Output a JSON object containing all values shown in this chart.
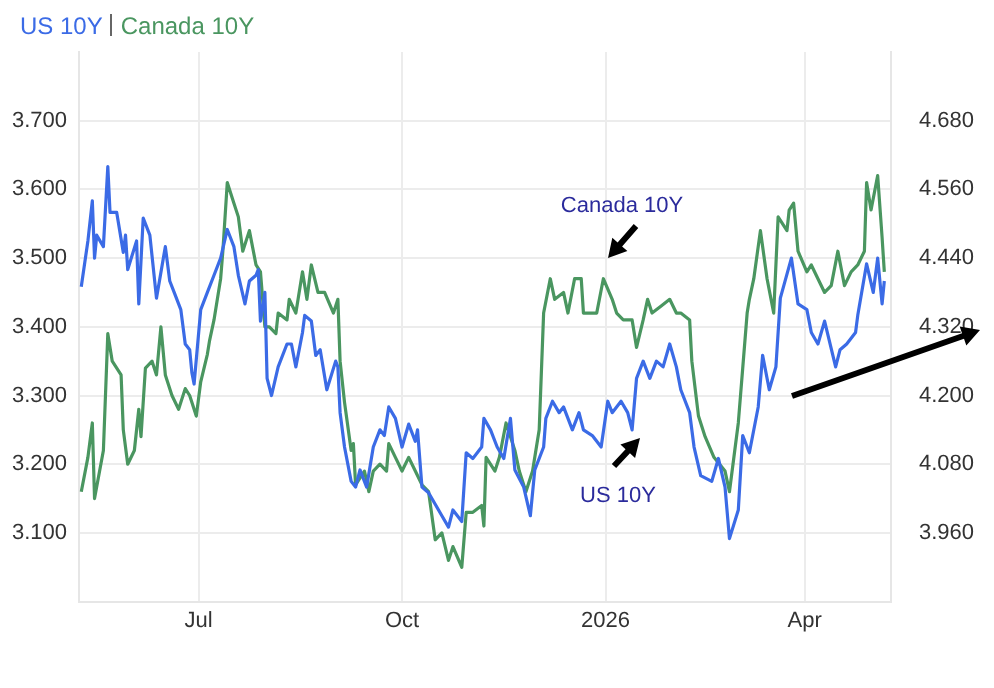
{
  "chart_data": {
    "type": "line",
    "xlim": [
      "2025-05-08",
      "2026-05-10"
    ],
    "xticks": [
      {
        "value": "2025-07-01",
        "label": "Jul"
      },
      {
        "value": "2025-10-01",
        "label": "Oct"
      },
      {
        "value": "2026-01-01",
        "label": "2026"
      },
      {
        "value": "2026-04-01",
        "label": "Apr"
      }
    ],
    "ylim": [
      3.0,
      3.8
    ],
    "yticks": [
      {
        "value": 3.1,
        "label": "3.100"
      },
      {
        "value": 3.2,
        "label": "3.200"
      },
      {
        "value": 3.3,
        "label": "3.300"
      },
      {
        "value": 3.4,
        "label": "3.400"
      },
      {
        "value": 3.5,
        "label": "3.500"
      },
      {
        "value": 3.6,
        "label": "3.600"
      },
      {
        "value": 3.7,
        "label": "3.700"
      }
    ],
    "y2lim": [
      3.84,
      4.8
    ],
    "y2ticks": [
      {
        "value": 3.96,
        "label": "3.960"
      },
      {
        "value": 4.08,
        "label": "4.080"
      },
      {
        "value": 4.2,
        "label": "4.200"
      },
      {
        "value": 4.32,
        "label": "4.320"
      },
      {
        "value": 4.44,
        "label": "4.440"
      },
      {
        "value": 4.56,
        "label": "4.560"
      },
      {
        "value": 4.68,
        "label": "4.680"
      }
    ],
    "grid": true,
    "legend": "top left",
    "marker": "none",
    "line_style": "solid",
    "annotations": [
      "Canada 10Y",
      "US 10Y"
    ],
    "series": [
      {
        "name": "US 10Y",
        "color": "#3b6be6",
        "axis": "y2",
        "x": [
          "2025-05-09",
          "2025-05-12",
          "2025-05-14",
          "2025-05-15",
          "2025-05-16",
          "2025-05-19",
          "2025-05-21",
          "2025-05-22",
          "2025-05-25",
          "2025-05-28",
          "2025-05-29",
          "2025-05-30",
          "2025-06-03",
          "2025-06-04",
          "2025-06-06",
          "2025-06-09",
          "2025-06-12",
          "2025-06-16",
          "2025-06-18",
          "2025-06-20",
          "2025-06-23",
          "2025-06-25",
          "2025-06-27",
          "2025-06-28",
          "2025-06-29",
          "2025-07-02",
          "2025-07-05",
          "2025-07-08",
          "2025-07-11",
          "2025-07-14",
          "2025-07-17",
          "2025-07-19",
          "2025-07-22",
          "2025-07-24",
          "2025-07-27",
          "2025-07-28",
          "2025-07-29",
          "2025-07-31",
          "2025-08-01",
          "2025-08-03",
          "2025-08-06",
          "2025-08-10",
          "2025-08-12",
          "2025-08-14",
          "2025-08-17",
          "2025-08-18",
          "2025-08-21",
          "2025-08-23",
          "2025-08-25",
          "2025-08-28",
          "2025-09-01",
          "2025-09-02",
          "2025-09-03",
          "2025-09-05",
          "2025-09-08",
          "2025-09-10",
          "2025-09-12",
          "2025-09-15",
          "2025-09-18",
          "2025-09-21",
          "2025-09-23",
          "2025-09-25",
          "2025-09-28",
          "2025-10-01",
          "2025-10-04",
          "2025-10-07",
          "2025-10-08",
          "2025-10-10",
          "2025-10-13",
          "2025-10-16",
          "2025-10-19",
          "2025-10-22",
          "2025-10-24",
          "2025-10-28",
          "2025-10-30",
          "2025-11-02",
          "2025-11-06",
          "2025-11-07",
          "2025-11-10",
          "2025-11-13",
          "2025-11-16",
          "2025-11-19",
          "2025-11-21",
          "2025-11-25",
          "2025-11-28",
          "2025-11-30",
          "2025-12-04",
          "2025-12-05",
          "2025-12-08",
          "2025-12-11",
          "2025-12-13",
          "2025-12-17",
          "2025-12-20",
          "2025-12-22",
          "2025-12-26",
          "2025-12-30",
          "2026-01-02",
          "2026-01-04",
          "2026-01-08",
          "2026-01-11",
          "2026-01-13",
          "2026-01-15",
          "2026-01-18",
          "2026-01-21",
          "2026-01-24",
          "2026-01-27",
          "2026-01-30",
          "2026-02-02",
          "2026-02-04",
          "2026-02-08",
          "2026-02-10",
          "2026-02-13",
          "2026-02-18",
          "2026-02-21",
          "2026-02-24",
          "2026-02-26",
          "2026-03-02",
          "2026-03-04",
          "2026-03-07",
          "2026-03-11",
          "2026-03-13",
          "2026-03-16",
          "2026-03-19",
          "2026-03-21",
          "2026-03-26",
          "2026-03-29",
          "2026-04-02",
          "2026-04-04",
          "2026-04-07",
          "2026-04-10",
          "2026-04-15",
          "2026-04-17",
          "2026-04-20",
          "2026-04-24",
          "2026-04-25",
          "2026-04-29",
          "2026-05-02",
          "2026-05-04",
          "2026-05-06",
          "2026-05-07"
        ],
        "values": [
          4.39,
          4.47,
          4.54,
          4.44,
          4.48,
          4.46,
          4.6,
          4.52,
          4.52,
          4.45,
          4.48,
          4.42,
          4.47,
          4.36,
          4.51,
          4.48,
          4.37,
          4.46,
          4.4,
          4.38,
          4.35,
          4.29,
          4.28,
          4.24,
          4.22,
          4.35,
          4.38,
          4.41,
          4.44,
          4.49,
          4.46,
          4.41,
          4.36,
          4.4,
          4.41,
          4.42,
          4.33,
          4.38,
          4.23,
          4.2,
          4.25,
          4.29,
          4.29,
          4.25,
          4.31,
          4.34,
          4.33,
          4.27,
          4.28,
          4.21,
          4.26,
          4.25,
          4.17,
          4.11,
          4.05,
          4.04,
          4.07,
          4.04,
          4.11,
          4.14,
          4.13,
          4.18,
          4.16,
          4.11,
          4.15,
          4.12,
          4.14,
          4.04,
          4.03,
          4.01,
          3.99,
          3.97,
          4.0,
          3.98,
          4.1,
          4.09,
          4.11,
          4.16,
          4.14,
          4.11,
          4.09,
          4.16,
          4.07,
          4.04,
          3.99,
          4.07,
          4.11,
          4.16,
          4.19,
          4.17,
          4.18,
          4.14,
          4.17,
          4.14,
          4.13,
          4.11,
          4.19,
          4.17,
          4.19,
          4.17,
          4.14,
          4.23,
          4.26,
          4.23,
          4.26,
          4.25,
          4.29,
          4.25,
          4.21,
          4.17,
          4.11,
          4.06,
          4.05,
          4.09,
          4.04,
          3.95,
          4.0,
          4.13,
          4.1,
          4.18,
          4.27,
          4.21,
          4.25,
          4.37,
          4.44,
          4.36,
          4.35,
          4.31,
          4.29,
          4.33,
          4.25,
          4.28,
          4.29,
          4.31,
          4.34,
          4.43,
          4.38,
          4.44,
          4.36,
          4.4
        ]
      },
      {
        "name": "Canada 10Y",
        "color": "#4a9660",
        "x": [
          "2025-05-09",
          "2025-05-12",
          "2025-05-14",
          "2025-05-15",
          "2025-05-19",
          "2025-05-21",
          "2025-05-23",
          "2025-05-27",
          "2025-05-28",
          "2025-05-30",
          "2025-06-02",
          "2025-06-04",
          "2025-06-05",
          "2025-06-07",
          "2025-06-10",
          "2025-06-12",
          "2025-06-14",
          "2025-06-16",
          "2025-06-19",
          "2025-06-22",
          "2025-06-25",
          "2025-06-27",
          "2025-06-30",
          "2025-07-02",
          "2025-07-05",
          "2025-07-06",
          "2025-07-08",
          "2025-07-11",
          "2025-07-12",
          "2025-07-14",
          "2025-07-17",
          "2025-07-19",
          "2025-07-21",
          "2025-07-24",
          "2025-07-27",
          "2025-07-29",
          "2025-07-31",
          "2025-08-02",
          "2025-08-05",
          "2025-08-06",
          "2025-08-10",
          "2025-08-11",
          "2025-08-14",
          "2025-08-17",
          "2025-08-19",
          "2025-08-21",
          "2025-08-24",
          "2025-08-27",
          "2025-08-31",
          "2025-09-02",
          "2025-09-03",
          "2025-09-05",
          "2025-09-08",
          "2025-09-09",
          "2025-09-10",
          "2025-09-14",
          "2025-09-16",
          "2025-09-18",
          "2025-09-21",
          "2025-09-24",
          "2025-09-25",
          "2025-09-28",
          "2025-10-01",
          "2025-10-04",
          "2025-10-07",
          "2025-10-10",
          "2025-10-13",
          "2025-10-16",
          "2025-10-19",
          "2025-10-22",
          "2025-10-24",
          "2025-10-28",
          "2025-10-30",
          "2025-11-02",
          "2025-11-06",
          "2025-11-07",
          "2025-11-08",
          "2025-11-12",
          "2025-11-14",
          "2025-11-17",
          "2025-11-21",
          "2025-11-23",
          "2025-11-26",
          "2025-11-29",
          "2025-12-02",
          "2025-12-04",
          "2025-12-07",
          "2025-12-09",
          "2025-12-13",
          "2025-12-15",
          "2025-12-18",
          "2025-12-21",
          "2025-12-22",
          "2025-12-26",
          "2025-12-28",
          "2025-12-31",
          "2026-01-04",
          "2026-01-06",
          "2026-01-09",
          "2026-01-13",
          "2026-01-15",
          "2026-01-18",
          "2026-01-20",
          "2026-01-22",
          "2026-01-26",
          "2026-01-30",
          "2026-02-02",
          "2026-02-04",
          "2026-02-08",
          "2026-02-09",
          "2026-02-12",
          "2026-02-15",
          "2026-02-19",
          "2026-02-24",
          "2026-02-26",
          "2026-03-02",
          "2026-03-04",
          "2026-03-06",
          "2026-03-07",
          "2026-03-09",
          "2026-03-12",
          "2026-03-15",
          "2026-03-18",
          "2026-03-20",
          "2026-03-24",
          "2026-03-25",
          "2026-03-27",
          "2026-03-29",
          "2026-04-02",
          "2026-04-04",
          "2026-04-07",
          "2026-04-10",
          "2026-04-13",
          "2026-04-16",
          "2026-04-19",
          "2026-04-22",
          "2026-04-25",
          "2026-04-28",
          "2026-04-29",
          "2026-05-01",
          "2026-05-04",
          "2026-05-06",
          "2026-05-07"
        ],
        "values": [
          3.16,
          3.21,
          3.26,
          3.15,
          3.22,
          3.39,
          3.35,
          3.33,
          3.25,
          3.2,
          3.22,
          3.28,
          3.24,
          3.34,
          3.35,
          3.33,
          3.4,
          3.33,
          3.3,
          3.28,
          3.31,
          3.3,
          3.27,
          3.32,
          3.36,
          3.38,
          3.41,
          3.47,
          3.51,
          3.61,
          3.58,
          3.56,
          3.51,
          3.54,
          3.49,
          3.48,
          3.4,
          3.4,
          3.39,
          3.42,
          3.41,
          3.44,
          3.42,
          3.48,
          3.44,
          3.49,
          3.45,
          3.45,
          3.42,
          3.44,
          3.35,
          3.29,
          3.22,
          3.23,
          3.17,
          3.19,
          3.16,
          3.19,
          3.2,
          3.19,
          3.23,
          3.21,
          3.19,
          3.21,
          3.19,
          3.17,
          3.16,
          3.09,
          3.1,
          3.06,
          3.08,
          3.05,
          3.13,
          3.13,
          3.14,
          3.11,
          3.21,
          3.19,
          3.21,
          3.26,
          3.22,
          3.19,
          3.16,
          3.19,
          3.25,
          3.42,
          3.47,
          3.44,
          3.45,
          3.42,
          3.47,
          3.47,
          3.42,
          3.42,
          3.42,
          3.47,
          3.44,
          3.42,
          3.41,
          3.41,
          3.37,
          3.41,
          3.44,
          3.42,
          3.43,
          3.44,
          3.42,
          3.42,
          3.41,
          3.35,
          3.27,
          3.24,
          3.21,
          3.19,
          3.16,
          3.26,
          3.34,
          3.42,
          3.44,
          3.47,
          3.54,
          3.47,
          3.42,
          3.56,
          3.54,
          3.57,
          3.58,
          3.51,
          3.48,
          3.49,
          3.47,
          3.45,
          3.46,
          3.51,
          3.46,
          3.48,
          3.49,
          3.51,
          3.61,
          3.57,
          3.62,
          3.53,
          3.48
        ]
      }
    ]
  }
}
